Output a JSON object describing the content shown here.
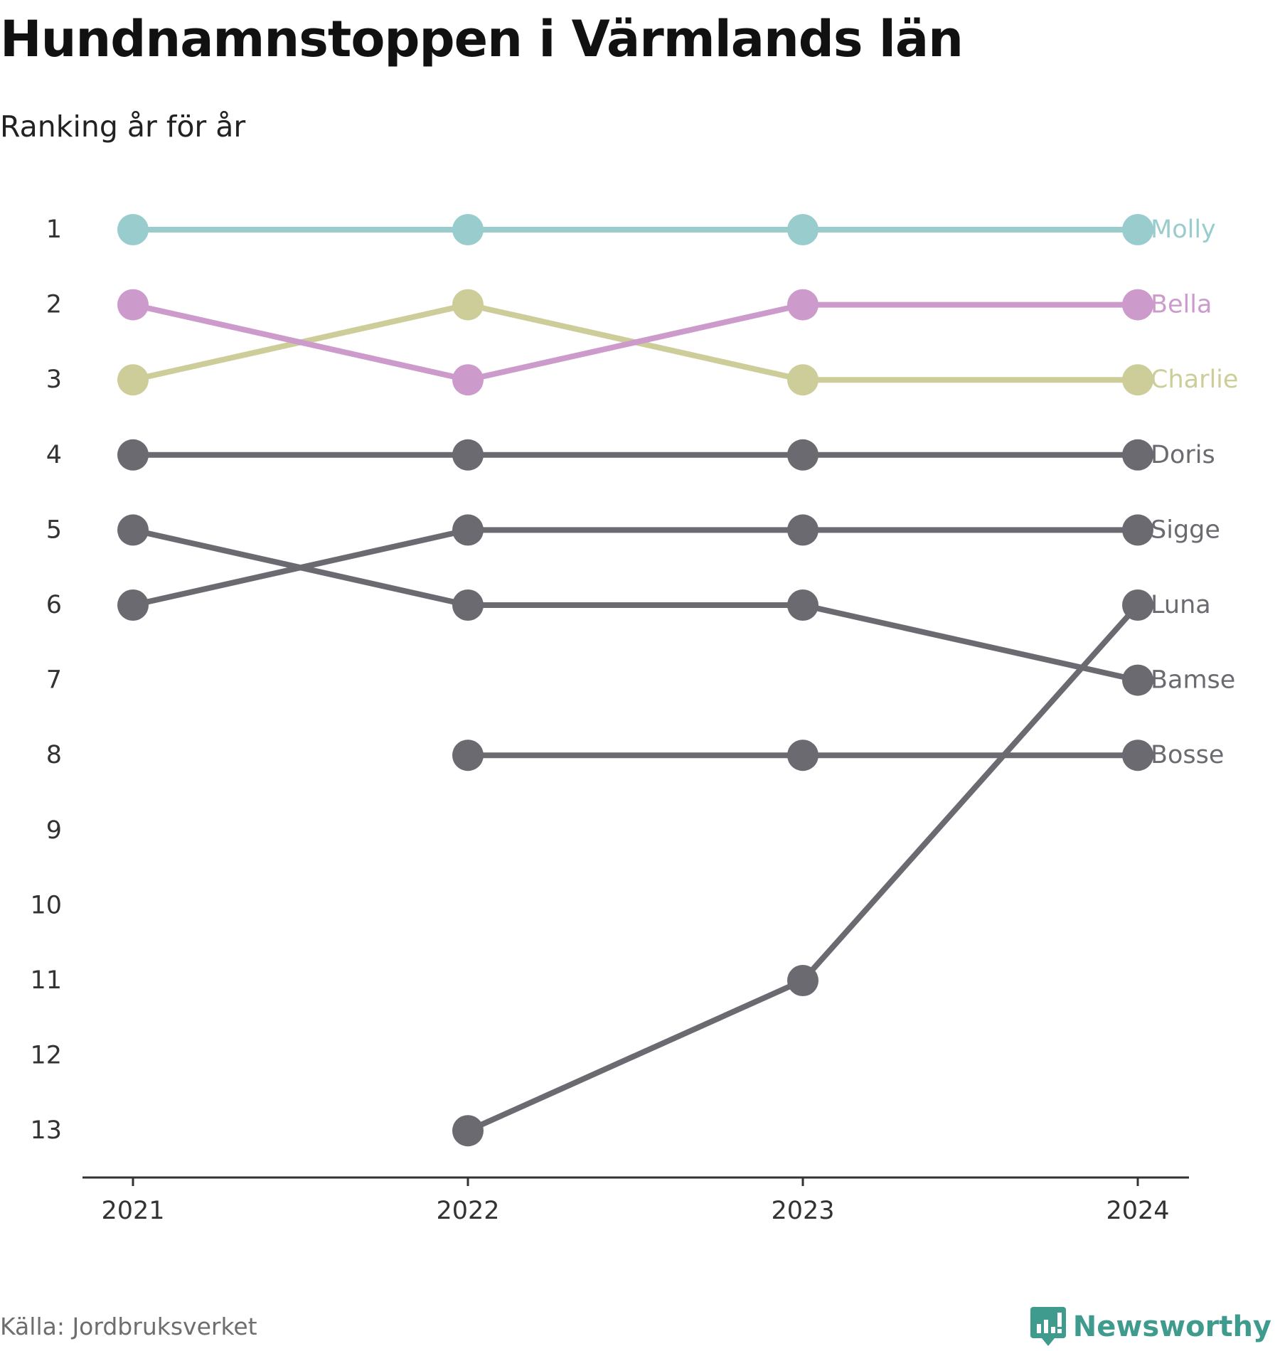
{
  "chart_data": {
    "type": "line",
    "title": "Hundnamnstoppen i Värmlands län",
    "subtitle": "Ranking år för år",
    "x": [
      "2021",
      "2022",
      "2023",
      "2024"
    ],
    "y_ticks": [
      "1",
      "2",
      "3",
      "4",
      "5",
      "6",
      "7",
      "8",
      "9",
      "10",
      "11",
      "12",
      "13"
    ],
    "ylim": [
      1,
      13
    ],
    "y_reversed": true,
    "grid": false,
    "legend": "inline labels at line ends (right)",
    "series": [
      {
        "name": "Luna",
        "values": [
          null,
          13,
          11,
          6
        ],
        "color": "#6b6a71"
      },
      {
        "name": "Bosse",
        "values": [
          null,
          8,
          8,
          8
        ],
        "color": "#6b6a71"
      },
      {
        "name": "Bamse",
        "values": [
          5,
          6,
          6,
          7
        ],
        "color": "#6b6a71"
      },
      {
        "name": "Sigge",
        "values": [
          6,
          5,
          5,
          5
        ],
        "color": "#6b6a71"
      },
      {
        "name": "Doris",
        "values": [
          4,
          4,
          4,
          4
        ],
        "color": "#6b6a71"
      },
      {
        "name": "Charlie",
        "values": [
          3,
          2,
          3,
          3
        ],
        "color": "#cdcd99"
      },
      {
        "name": "Bella",
        "values": [
          2,
          3,
          2,
          2
        ],
        "color": "#cc9bcc"
      },
      {
        "name": "Molly",
        "values": [
          1,
          1,
          1,
          1
        ],
        "color": "#99cccc"
      }
    ]
  },
  "source": "Källa: Jordbruksverket",
  "brand": {
    "name": "Newsworthy",
    "icon": "newsworthy-logo-icon",
    "color": "#3f9b8e"
  }
}
